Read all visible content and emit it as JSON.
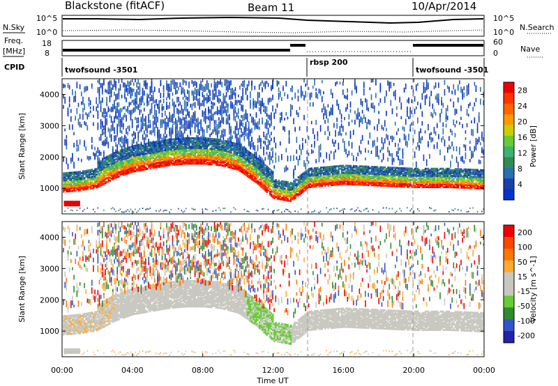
{
  "header": {
    "title": "Blackstone (fitACF)",
    "beam": "Beam 11",
    "date": "10/Apr/2014"
  },
  "panels": {
    "nsky": {
      "label": "N.Sky",
      "right_label": "N.Search",
      "ticks_left": [
        "10^5",
        "10^0"
      ],
      "ticks_right": [
        "10^5",
        "10^0"
      ]
    },
    "freq": {
      "label": "Freq.",
      "unit": "[MHz]",
      "right_label": "Nave",
      "ticks_left": [
        "18",
        "8"
      ],
      "ticks_right": [
        "60",
        "0"
      ]
    },
    "cpid": {
      "label": "CPID",
      "segments": [
        "twofsound -3501",
        "rbsp 200",
        "twofsound -3501"
      ]
    }
  },
  "colors": {
    "power_scale": [
      "#0033cc",
      "#1a3fa8",
      "#2a6fb0",
      "#2e8b57",
      "#3cb371",
      "#66cc33",
      "#cccc00",
      "#ff9900",
      "#ff6600",
      "#ff3300",
      "#ee0000"
    ],
    "velocity_scale": [
      "#2222aa",
      "#3355cc",
      "#2e8b2e",
      "#66cc33",
      "#c8c8c0",
      "#c8c8c0",
      "#ffaa33",
      "#ff7700",
      "#ff4400",
      "#ee0000"
    ],
    "gray_scatter": "#c8c8c0"
  },
  "chart_data": [
    {
      "type": "heatmap",
      "title": "",
      "xlabel": "Time UT",
      "ylabel": "Slant Range [km]",
      "xlim": [
        "00:00",
        "24:00"
      ],
      "ylim": [
        180,
        4500
      ],
      "x_ticks": [
        "00:00",
        "04:00",
        "08:00",
        "12:00",
        "16:00",
        "20:00",
        "00:00"
      ],
      "y_ticks": [
        1000,
        2000,
        3000,
        4000
      ],
      "colorbar": {
        "label": "Power [dB]",
        "ticks": [
          4,
          8,
          12,
          16,
          20,
          24,
          28
        ],
        "range": [
          0,
          30
        ]
      },
      "echo_band": {
        "time_hours": [
          0,
          1,
          2,
          3,
          4,
          5,
          6,
          7,
          8,
          9,
          10,
          11,
          12,
          13,
          14,
          16,
          18,
          20,
          22,
          24
        ],
        "main_range_km": [
          1100,
          1150,
          1250,
          1550,
          1750,
          1850,
          1950,
          2000,
          2000,
          1950,
          1800,
          1400,
          900,
          800,
          1250,
          1350,
          1300,
          1250,
          1250,
          1200
        ]
      }
    },
    {
      "type": "heatmap",
      "title": "",
      "xlabel": "Time UT",
      "ylabel": "Slant Range [km]",
      "xlim": [
        "00:00",
        "24:00"
      ],
      "ylim": [
        180,
        4500
      ],
      "x_ticks": [
        "00:00",
        "04:00",
        "08:00",
        "12:00",
        "16:00",
        "20:00",
        "00:00"
      ],
      "y_ticks": [
        1000,
        2000,
        3000,
        4000
      ],
      "colorbar": {
        "label": "Velocity [m s^-1]",
        "ticks": [
          200,
          100,
          50,
          15,
          -15,
          -50,
          -100,
          -200
        ],
        "range": [
          -250,
          250
        ]
      }
    }
  ]
}
